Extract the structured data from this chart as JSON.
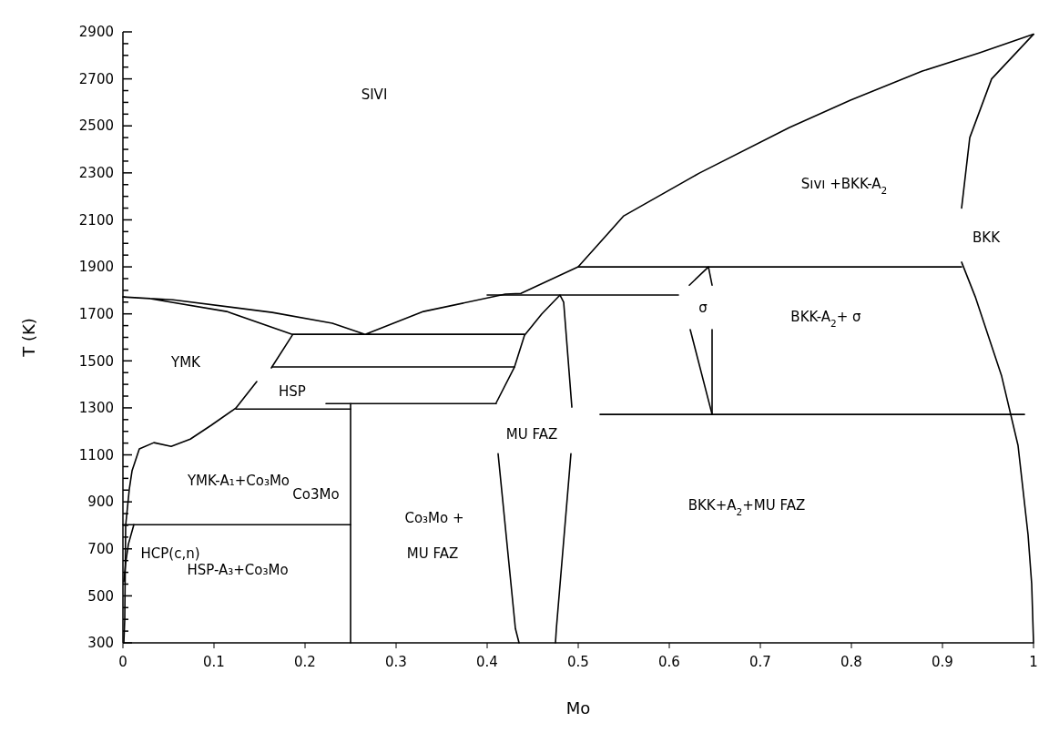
{
  "chart_data": {
    "type": "line",
    "xlabel": "Mo",
    "ylabel": "T (K)",
    "xlim": [
      0,
      1
    ],
    "ylim": [
      300,
      2900
    ],
    "xticks": [
      0,
      0.1,
      0.2,
      0.3,
      0.4,
      0.5,
      0.6,
      0.7,
      0.8,
      0.9,
      1
    ],
    "yticks": [
      300,
      {
        "value": 350,
        "label": null
      },
      {
        "value": 400,
        "label": null
      },
      {
        "value": 450,
        "label": null
      },
      500,
      {
        "value": 550,
        "label": null
      },
      {
        "value": 600,
        "label": null
      },
      {
        "value": 650,
        "label": null
      },
      700,
      {
        "value": 750,
        "label": null
      },
      {
        "value": 800,
        "label": null
      },
      {
        "value": 850,
        "label": null
      },
      900,
      {
        "value": 950,
        "label": null
      },
      {
        "value": 1000,
        "label": null
      },
      {
        "value": 1050,
        "label": null
      },
      1100,
      {
        "value": 1150,
        "label": null
      },
      {
        "value": 1200,
        "label": null
      },
      {
        "value": 1250,
        "label": null
      },
      1300,
      {
        "value": 1350,
        "label": null
      },
      {
        "value": 1400,
        "label": null
      },
      {
        "value": 1450,
        "label": null
      },
      1500,
      {
        "value": 1550,
        "label": null
      },
      {
        "value": 1600,
        "label": null
      },
      {
        "value": 1650,
        "label": null
      },
      1700,
      {
        "value": 1750,
        "label": null
      },
      {
        "value": 1800,
        "label": null
      },
      {
        "value": 1850,
        "label": null
      },
      1900,
      {
        "value": 1950,
        "label": null
      },
      {
        "value": 2000,
        "label": null
      },
      {
        "value": 2050,
        "label": null
      },
      2100,
      {
        "value": 2150,
        "label": null
      },
      {
        "value": 2200,
        "label": null
      },
      {
        "value": 2250,
        "label": null
      },
      2300,
      {
        "value": 2350,
        "label": null
      },
      {
        "value": 2400,
        "label": null
      },
      {
        "value": 2450,
        "label": null
      },
      2500,
      {
        "value": 2550,
        "label": null
      },
      {
        "value": 2600,
        "label": null
      },
      {
        "value": 2650,
        "label": null
      },
      2700,
      {
        "value": 2750,
        "label": null
      },
      {
        "value": 2800,
        "label": null
      },
      {
        "value": 2850,
        "label": null
      },
      2900
    ],
    "series": [
      {
        "color": "#000000",
        "x": [
          1,
          0.94,
          0.878,
          0.799,
          0.732,
          0.633,
          0.55,
          0.5,
          0.437,
          0.42,
          0.33,
          0.266,
          0.23,
          0.164,
          0.055,
          0,
          0.03,
          0.114,
          0.186,
          0.441
        ],
        "values": [
          2890,
          2810,
          2733,
          2609,
          2493,
          2299,
          2117,
          1900,
          1787,
          1784,
          1710,
          1613,
          1660,
          1706,
          1760,
          1772,
          1765,
          1710,
          1613,
          1613
        ]
      },
      {
        "color": "#000000",
        "x": [
          0.164,
          0.43
        ],
        "values": [
          1474,
          1474
        ]
      },
      {
        "color": "#000000",
        "x": [
          0.223,
          0.41
        ],
        "values": [
          1318,
          1318
        ]
      },
      {
        "color": "#000000",
        "x": [
          0.124,
          0.25
        ],
        "values": [
          1295,
          1295
        ]
      },
      {
        "color": "#000000",
        "x": [
          0.25,
          0.25
        ],
        "values": [
          1318,
          300
        ]
      },
      {
        "color": "#000000",
        "x": [
          0,
          0.25
        ],
        "values": [
          803,
          803
        ]
      },
      {
        "color": "#000000",
        "x": [
          0.186,
          0.163
        ],
        "values": [
          1609,
          1470
        ]
      },
      {
        "color": "#000000",
        "x": [
          0.147,
          0.124,
          0.097,
          0.074,
          0.053,
          0.034,
          0.018,
          0.01,
          0.007,
          0.003,
          0.002,
          0.001
        ],
        "values": [
          1412,
          1299,
          1226,
          1167,
          1136,
          1152,
          1125,
          1032,
          954,
          800,
          400,
          300
        ]
      },
      {
        "color": "#000000",
        "x": [
          0.012,
          0.006,
          0.003,
          0.001
        ],
        "values": [
          803,
          720,
          640,
          560
        ]
      },
      {
        "color": "#000000",
        "x": [
          0.41,
          0.43,
          0.441,
          0.46,
          0.48,
          0.484,
          0.493
        ],
        "values": [
          1322,
          1474,
          1609,
          1700,
          1780,
          1750,
          1303
        ]
      },
      {
        "color": "#000000",
        "x": [
          0.412,
          0.431,
          0.435
        ],
        "values": [
          1105,
          361,
          300
        ]
      },
      {
        "color": "#000000",
        "x": [
          0.492,
          0.476,
          0.475
        ],
        "values": [
          1105,
          361,
          300
        ]
      },
      {
        "color": "#000000",
        "x": [
          0.4,
          0.61
        ],
        "values": [
          1780,
          1780
        ]
      },
      {
        "color": "#000000",
        "x": [
          0.5,
          0.921
        ],
        "values": [
          1900,
          1900
        ]
      },
      {
        "color": "#000000",
        "x": [
          0.622,
          0.643,
          0.647
        ],
        "values": [
          1822,
          1900,
          1822
        ]
      },
      {
        "color": "#000000",
        "x": [
          0.623,
          0.647
        ],
        "values": [
          1633,
          1272
        ]
      },
      {
        "color": "#000000",
        "x": [
          0.647,
          0.647
        ],
        "values": [
          1633,
          1272
        ]
      },
      {
        "color": "#000000",
        "x": [
          0.524,
          0.99
        ],
        "values": [
          1272,
          1272
        ]
      },
      {
        "color": "#000000",
        "x": [
          1,
          0.954,
          0.93,
          0.921
        ],
        "values": [
          2890,
          2700,
          2450,
          2150
        ]
      },
      {
        "color": "#000000",
        "x": [
          0.921,
          0.936,
          0.965,
          0.983,
          0.994,
          0.998,
          1
        ],
        "values": [
          1920,
          1773,
          1435,
          1140,
          760,
          550,
          300
        ]
      }
    ],
    "annotations": [
      "SIVI",
      "Sıvı +BKK-A$_{2}$",
      "BKK",
      "σ",
      "BKK-A$_{2}$+ σ",
      "YMK",
      "HSP",
      "MU FAZ",
      "YMK-A₁+Co₃Mo",
      "Co3Mo",
      "Co₃Mo +",
      "MU FAZ",
      "HSP-A₃+Co₃Mo",
      "HCP(c,n)",
      "BKK+A$_{2}$+MU FAZ"
    ]
  }
}
